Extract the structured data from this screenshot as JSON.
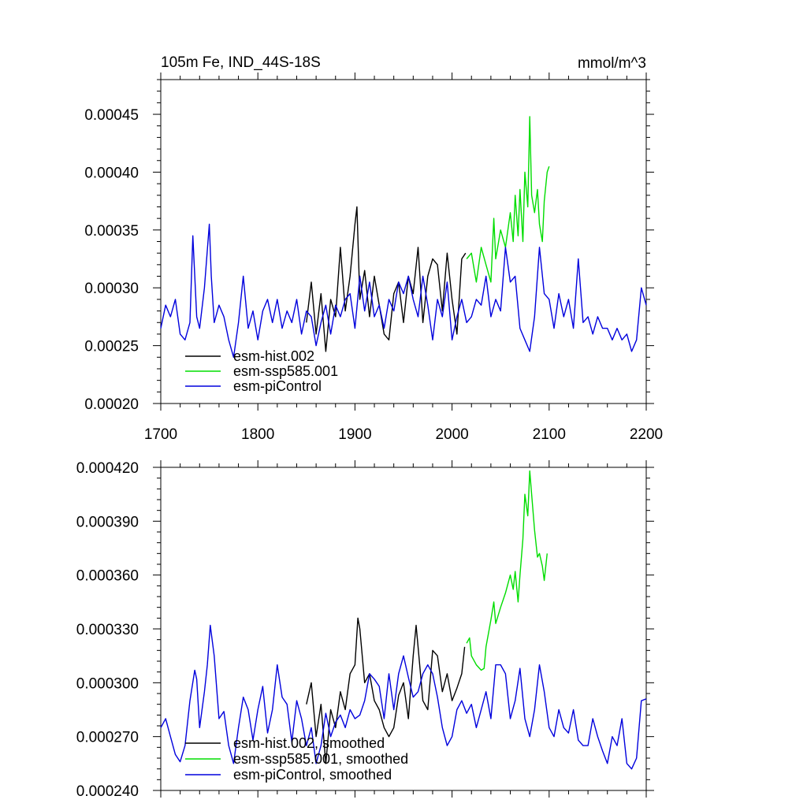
{
  "figure": {
    "title_left": "105m Fe, IND_44S-18S",
    "title_right": "mmol/m^3"
  },
  "chart_data": [
    {
      "type": "line",
      "panel": "top",
      "xlim": [
        1700,
        2200
      ],
      "ylim": [
        0.0002,
        0.00048
      ],
      "xticks": [
        1700,
        1800,
        1900,
        2000,
        2100,
        2200
      ],
      "xtick_labels": [
        "1700",
        "1800",
        "1900",
        "2000",
        "2100",
        "2200"
      ],
      "yticks": [
        0.0002,
        0.00025,
        0.0003,
        0.00035,
        0.0004,
        0.00045
      ],
      "ytick_labels": [
        "0.00020",
        "0.00025",
        "0.00030",
        "0.00035",
        "0.00040",
        "0.00045"
      ],
      "series": [
        {
          "name": "esm-hist.002",
          "legend": "esm-hist.002",
          "color": "#000000",
          "x": [
            1850,
            1855,
            1860,
            1865,
            1870,
            1875,
            1880,
            1885,
            1890,
            1895,
            1900,
            1902,
            1905,
            1910,
            1915,
            1920,
            1925,
            1930,
            1935,
            1940,
            1945,
            1950,
            1955,
            1960,
            1965,
            1970,
            1975,
            1980,
            1985,
            1990,
            1995,
            2000,
            2005,
            2010,
            2014
          ],
          "values": [
            0.00027,
            0.000305,
            0.00026,
            0.000295,
            0.000245,
            0.00029,
            0.000275,
            0.000335,
            0.00028,
            0.00031,
            0.000355,
            0.00037,
            0.00029,
            0.000315,
            0.000275,
            0.00031,
            0.000285,
            0.00026,
            0.000255,
            0.000295,
            0.000305,
            0.00027,
            0.00031,
            0.000295,
            0.000335,
            0.00027,
            0.00031,
            0.000325,
            0.00032,
            0.00028,
            0.00033,
            0.00029,
            0.00026,
            0.000325,
            0.00033
          ]
        },
        {
          "name": "esm-ssp585.001",
          "legend": "esm-ssp585.001",
          "color": "#00dd00",
          "x": [
            2015,
            2020,
            2025,
            2030,
            2035,
            2040,
            2043,
            2045,
            2050,
            2055,
            2060,
            2063,
            2065,
            2068,
            2070,
            2073,
            2075,
            2078,
            2080,
            2082,
            2085,
            2088,
            2090,
            2093,
            2095,
            2098,
            2100
          ],
          "values": [
            0.000325,
            0.00033,
            0.000305,
            0.000335,
            0.00032,
            0.000305,
            0.00036,
            0.000325,
            0.00035,
            0.000335,
            0.000365,
            0.00034,
            0.00038,
            0.000345,
            0.000385,
            0.00034,
            0.0004,
            0.00037,
            0.000448,
            0.00038,
            0.000365,
            0.000385,
            0.000355,
            0.00034,
            0.000375,
            0.0004,
            0.000405
          ]
        },
        {
          "name": "esm-piControl",
          "legend": "esm-piControl",
          "color": "#0000dd",
          "x": [
            1700,
            1705,
            1710,
            1715,
            1720,
            1725,
            1730,
            1733,
            1737,
            1740,
            1745,
            1750,
            1752,
            1755,
            1760,
            1765,
            1770,
            1775,
            1780,
            1785,
            1790,
            1795,
            1800,
            1805,
            1810,
            1815,
            1820,
            1825,
            1830,
            1835,
            1840,
            1845,
            1850,
            1855,
            1860,
            1865,
            1870,
            1875,
            1880,
            1885,
            1890,
            1895,
            1900,
            1905,
            1910,
            1915,
            1920,
            1925,
            1930,
            1935,
            1940,
            1945,
            1950,
            1955,
            1960,
            1965,
            1970,
            1975,
            1980,
            1985,
            1990,
            1995,
            2000,
            2005,
            2010,
            2015,
            2020,
            2025,
            2030,
            2035,
            2040,
            2045,
            2050,
            2055,
            2060,
            2065,
            2070,
            2075,
            2080,
            2085,
            2090,
            2095,
            2100,
            2105,
            2110,
            2115,
            2120,
            2125,
            2130,
            2135,
            2140,
            2145,
            2150,
            2155,
            2160,
            2165,
            2170,
            2175,
            2180,
            2185,
            2190,
            2195,
            2200
          ],
          "values": [
            0.000265,
            0.000285,
            0.000275,
            0.00029,
            0.00026,
            0.000255,
            0.00027,
            0.000345,
            0.000275,
            0.000265,
            0.0003,
            0.000355,
            0.00031,
            0.00027,
            0.000285,
            0.000275,
            0.000255,
            0.00024,
            0.00027,
            0.00031,
            0.000265,
            0.00028,
            0.000255,
            0.00028,
            0.00029,
            0.00027,
            0.00029,
            0.000265,
            0.00028,
            0.00027,
            0.00029,
            0.00026,
            0.00028,
            0.000275,
            0.00025,
            0.00027,
            0.000285,
            0.00026,
            0.000285,
            0.000275,
            0.00029,
            0.000295,
            0.000265,
            0.00031,
            0.00028,
            0.000305,
            0.000275,
            0.000285,
            0.000265,
            0.00029,
            0.00028,
            0.000305,
            0.000295,
            0.00031,
            0.00029,
            0.000275,
            0.00031,
            0.000285,
            0.000255,
            0.00029,
            0.000275,
            0.000305,
            0.000255,
            0.000275,
            0.00029,
            0.00027,
            0.000275,
            0.00029,
            0.000285,
            0.00031,
            0.000275,
            0.00029,
            0.00028,
            0.000335,
            0.000305,
            0.00031,
            0.000265,
            0.000255,
            0.000245,
            0.000275,
            0.000335,
            0.000295,
            0.00029,
            0.000265,
            0.000295,
            0.000275,
            0.00029,
            0.000265,
            0.000325,
            0.00027,
            0.000275,
            0.00026,
            0.000275,
            0.000265,
            0.000265,
            0.000255,
            0.000265,
            0.000255,
            0.00026,
            0.000245,
            0.000255,
            0.0003,
            0.000285
          ]
        }
      ]
    },
    {
      "type": "line",
      "panel": "bottom",
      "xlim": [
        1700,
        2200
      ],
      "ylim": [
        0.00024,
        0.00042
      ],
      "xticks": [
        1700,
        1800,
        1900,
        2000,
        2100,
        2200
      ],
      "yticks": [
        0.00024,
        0.00027,
        0.0003,
        0.00033,
        0.00036,
        0.00039,
        0.00042
      ],
      "ytick_labels": [
        "0.000240",
        "0.000270",
        "0.000300",
        "0.000330",
        "0.000360",
        "0.000390",
        "0.000420"
      ],
      "series": [
        {
          "name": "esm-hist.002, smoothed",
          "legend": "esm-hist.002, smoothed",
          "color": "#000000",
          "x": [
            1850,
            1855,
            1860,
            1865,
            1870,
            1875,
            1880,
            1885,
            1890,
            1895,
            1900,
            1903,
            1905,
            1910,
            1915,
            1920,
            1925,
            1930,
            1935,
            1940,
            1945,
            1950,
            1955,
            1960,
            1963,
            1965,
            1970,
            1975,
            1980,
            1985,
            1990,
            1995,
            2000,
            2005,
            2010,
            2013
          ],
          "values": [
            0.000288,
            0.0003,
            0.00027,
            0.000288,
            0.000255,
            0.000285,
            0.000275,
            0.000295,
            0.000285,
            0.000305,
            0.00031,
            0.000336,
            0.00033,
            0.0003,
            0.000305,
            0.00029,
            0.000285,
            0.000275,
            0.00027,
            0.000275,
            0.000293,
            0.0003,
            0.00028,
            0.000315,
            0.000332,
            0.00032,
            0.00029,
            0.000285,
            0.000318,
            0.000315,
            0.000295,
            0.000305,
            0.00029,
            0.000297,
            0.000305,
            0.00032
          ]
        },
        {
          "name": "esm-ssp585.001, smoothed",
          "legend": "esm-ssp585.001, smoothed",
          "color": "#00dd00",
          "x": [
            2015,
            2018,
            2020,
            2025,
            2030,
            2033,
            2035,
            2040,
            2043,
            2045,
            2050,
            2055,
            2060,
            2063,
            2065,
            2068,
            2070,
            2073,
            2075,
            2078,
            2080,
            2082,
            2085,
            2088,
            2090,
            2093,
            2095,
            2098
          ],
          "values": [
            0.000322,
            0.000325,
            0.000315,
            0.00031,
            0.000307,
            0.000308,
            0.00032,
            0.000335,
            0.000345,
            0.000333,
            0.000342,
            0.00035,
            0.00036,
            0.000352,
            0.000362,
            0.000345,
            0.00036,
            0.00038,
            0.000405,
            0.000393,
            0.000418,
            0.000405,
            0.000385,
            0.00037,
            0.000372,
            0.000365,
            0.000357,
            0.000372
          ]
        },
        {
          "name": "esm-piControl, smoothed",
          "legend": "esm-piControl, smoothed",
          "color": "#0000dd",
          "x": [
            1700,
            1705,
            1710,
            1715,
            1720,
            1725,
            1730,
            1735,
            1737,
            1740,
            1745,
            1748,
            1751,
            1755,
            1760,
            1765,
            1770,
            1775,
            1780,
            1785,
            1790,
            1795,
            1800,
            1805,
            1810,
            1815,
            1820,
            1825,
            1830,
            1835,
            1840,
            1845,
            1850,
            1855,
            1860,
            1865,
            1870,
            1875,
            1880,
            1885,
            1890,
            1895,
            1900,
            1905,
            1910,
            1915,
            1920,
            1925,
            1930,
            1935,
            1940,
            1945,
            1950,
            1955,
            1960,
            1965,
            1970,
            1975,
            1980,
            1985,
            1990,
            1995,
            2000,
            2005,
            2010,
            2015,
            2020,
            2025,
            2030,
            2035,
            2040,
            2045,
            2050,
            2055,
            2060,
            2065,
            2070,
            2075,
            2080,
            2085,
            2090,
            2095,
            2100,
            2105,
            2110,
            2115,
            2120,
            2125,
            2130,
            2135,
            2140,
            2145,
            2150,
            2155,
            2160,
            2165,
            2170,
            2175,
            2180,
            2185,
            2190,
            2195,
            2200
          ],
          "values": [
            0.000275,
            0.00028,
            0.00027,
            0.00026,
            0.000256,
            0.000265,
            0.00029,
            0.000307,
            0.000302,
            0.000275,
            0.000295,
            0.00031,
            0.000332,
            0.000315,
            0.00028,
            0.000284,
            0.000265,
            0.000255,
            0.000275,
            0.000292,
            0.000285,
            0.000268,
            0.000285,
            0.000298,
            0.000272,
            0.000285,
            0.00031,
            0.000292,
            0.000288,
            0.000267,
            0.00029,
            0.00028,
            0.000265,
            0.000275,
            0.000255,
            0.000265,
            0.000283,
            0.00027,
            0.000278,
            0.000282,
            0.000275,
            0.000285,
            0.00028,
            0.000282,
            0.00029,
            0.000305,
            0.000302,
            0.000298,
            0.00028,
            0.000305,
            0.000285,
            0.000305,
            0.000315,
            0.000303,
            0.000292,
            0.000295,
            0.000305,
            0.00031,
            0.000305,
            0.000292,
            0.000275,
            0.000265,
            0.00027,
            0.000285,
            0.00029,
            0.000283,
            0.000288,
            0.000275,
            0.000285,
            0.000295,
            0.00028,
            0.00031,
            0.00031,
            0.000305,
            0.00028,
            0.00029,
            0.000308,
            0.00028,
            0.00027,
            0.000285,
            0.00031,
            0.000295,
            0.000275,
            0.00027,
            0.000285,
            0.000275,
            0.000272,
            0.000285,
            0.000268,
            0.000265,
            0.000265,
            0.00028,
            0.00027,
            0.000262,
            0.000255,
            0.00027,
            0.000265,
            0.00028,
            0.000255,
            0.000252,
            0.000258,
            0.00029,
            0.000291
          ]
        }
      ]
    }
  ]
}
